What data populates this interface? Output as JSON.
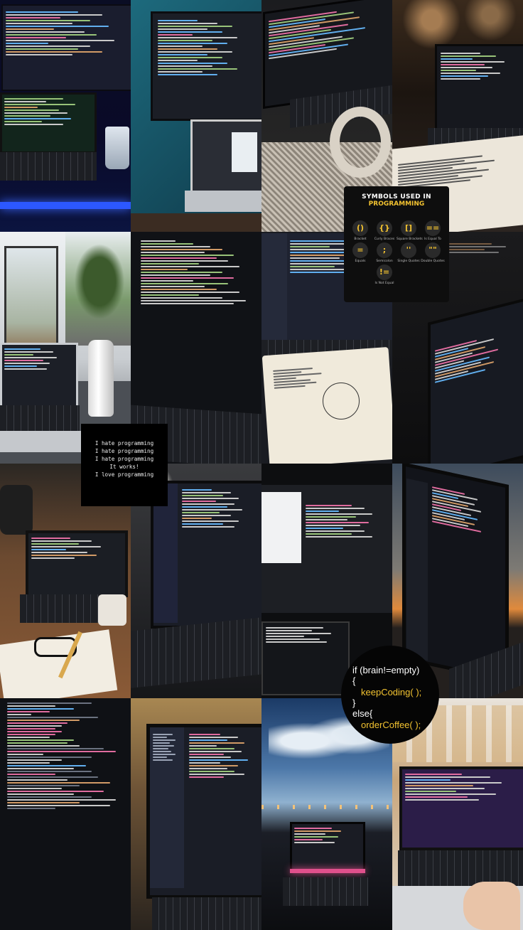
{
  "symbols_card": {
    "title": "SYMBOLS USED IN",
    "subtitle": "PROGRAMMING",
    "items": [
      {
        "symbol": "()",
        "label": "Bracket"
      },
      {
        "symbol": "{}",
        "label": "Curly Braces"
      },
      {
        "symbol": "[]",
        "label": "Square Brackets"
      },
      {
        "symbol": "==",
        "label": "Is Equal To"
      },
      {
        "symbol": "=",
        "label": "Equals"
      },
      {
        "symbol": ";",
        "label": "Semicolon"
      },
      {
        "symbol": "''",
        "label": "Single Quotes"
      },
      {
        "symbol": "\"\"",
        "label": "Double Quotes"
      },
      {
        "symbol": "!=",
        "label": "Is Not Equal"
      }
    ]
  },
  "hate_card": {
    "lines": [
      "I hate programming",
      "I hate programming",
      "I hate programming",
      "It works!",
      "I love programming"
    ]
  },
  "brain_card": {
    "line1": "if (brain!=empty)",
    "line2": "{",
    "line3": "keepCoding( );",
    "line4": "}",
    "line5": "else{",
    "line6": "orderCoffee( );"
  },
  "colors": {
    "accent_yellow": "#f2c230",
    "code_pink": "#e06c9f",
    "code_blue": "#61afef",
    "code_green": "#98c379",
    "code_orange": "#d19a66"
  }
}
